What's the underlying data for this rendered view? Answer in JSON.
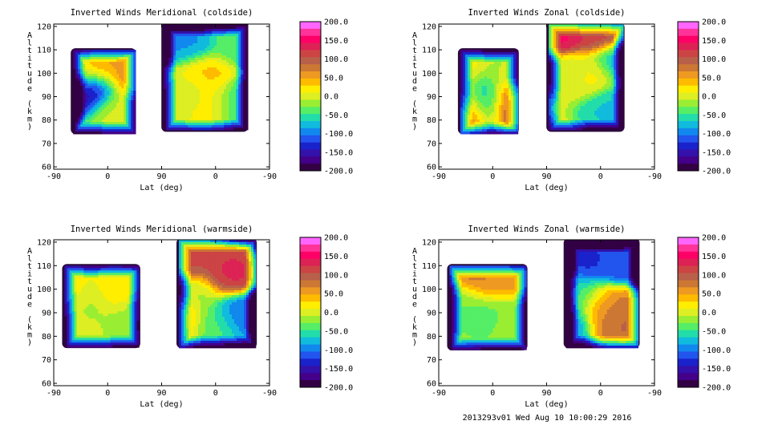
{
  "footer": "2013293v01 Wed Aug 10 10:00:29 2016",
  "colorbar": {
    "labels": [
      "200.0",
      "150.0",
      "100.0",
      "50.0",
      "0.0",
      "-50.0",
      "-100.0",
      "-150.0",
      "-200.0"
    ],
    "colors": [
      "#ff66ff",
      "#ff3399",
      "#ff0066",
      "#dd2255",
      "#cc4444",
      "#b8604a",
      "#cc7733",
      "#ee9922",
      "#ffbb00",
      "#ffee00",
      "#ddee22",
      "#99ee33",
      "#55ee66",
      "#22ddaa",
      "#11bbdd",
      "#1188ee",
      "#2255ee",
      "#1a22cc",
      "#3311aa",
      "#440088",
      "#330044"
    ]
  },
  "chart_data": [
    {
      "type": "heatmap",
      "title": "Inverted Winds Meridional (coldside)",
      "xlabel": "Lat (deg)",
      "ylabel": "Altitude (km)",
      "x_ticks": [
        "-90",
        "0",
        "90",
        "0",
        "-90"
      ],
      "y_ticks": [
        60,
        70,
        80,
        90,
        100,
        110,
        120
      ],
      "ylim": [
        59,
        121
      ],
      "zlim": [
        -200,
        200
      ],
      "blobs": [
        {
          "x": 1.8,
          "y": 93,
          "z": -170
        },
        {
          "x": 0.5,
          "y": 102,
          "z": 5
        },
        {
          "x": 2.2,
          "y": 101,
          "z": 55
        },
        {
          "x": 3.7,
          "y": 97,
          "z": 75
        },
        {
          "x": 3.0,
          "y": 86,
          "z": 0
        },
        {
          "x": 6.0,
          "y": 92,
          "z": -10
        },
        {
          "x": 7.0,
          "y": 100,
          "z": 35
        },
        {
          "x": 7.3,
          "y": 88,
          "z": 20
        },
        {
          "x": 6.2,
          "y": 112,
          "z": -90
        },
        {
          "x": 8.5,
          "y": 112,
          "z": -40
        },
        {
          "x": 8.6,
          "y": 88,
          "z": -60
        }
      ]
    },
    {
      "type": "heatmap",
      "title": "Inverted Winds Zonal (coldside)",
      "xlabel": "Lat (deg)",
      "ylabel": "Altitude (km)",
      "x_ticks": [
        "-90",
        "0",
        "90",
        "0",
        "-90"
      ],
      "y_ticks": [
        60,
        70,
        80,
        90,
        100,
        110,
        120
      ],
      "ylim": [
        59,
        121
      ],
      "zlim": [
        -200,
        200
      ],
      "blobs": [
        {
          "x": 1.0,
          "y": 86,
          "z": 90
        },
        {
          "x": 0.8,
          "y": 98,
          "z": 20
        },
        {
          "x": 2.0,
          "y": 90,
          "z": -80
        },
        {
          "x": 3.4,
          "y": 100,
          "z": -10
        },
        {
          "x": 3.6,
          "y": 89,
          "z": 110
        },
        {
          "x": 5.6,
          "y": 118,
          "z": 150
        },
        {
          "x": 7.4,
          "y": 117,
          "z": 120
        },
        {
          "x": 6.2,
          "y": 99,
          "z": -10
        },
        {
          "x": 7.0,
          "y": 99,
          "z": 25
        },
        {
          "x": 8.0,
          "y": 86,
          "z": -70
        },
        {
          "x": 8.3,
          "y": 105,
          "z": -80
        }
      ]
    },
    {
      "type": "heatmap",
      "title": "Inverted Winds Meridional (warmside)",
      "xlabel": "Lat (deg)",
      "ylabel": "Altitude (km)",
      "x_ticks": [
        "-90",
        "0",
        "90",
        "0",
        "-90"
      ],
      "y_ticks": [
        60,
        70,
        80,
        90,
        100,
        110,
        120
      ],
      "ylim": [
        59,
        121
      ],
      "zlim": [
        -200,
        200
      ],
      "blobs": [
        {
          "x": 0.6,
          "y": 98,
          "z": 40
        },
        {
          "x": 1.6,
          "y": 95,
          "z": -25
        },
        {
          "x": 2.7,
          "y": 98,
          "z": 30
        },
        {
          "x": 1.2,
          "y": 85,
          "z": -5
        },
        {
          "x": 3.4,
          "y": 88,
          "z": -20
        },
        {
          "x": 6.5,
          "y": 112,
          "z": 110
        },
        {
          "x": 8.1,
          "y": 106,
          "z": 130
        },
        {
          "x": 6.6,
          "y": 98,
          "z": -15
        },
        {
          "x": 5.8,
          "y": 88,
          "z": 60
        },
        {
          "x": 7.4,
          "y": 86,
          "z": -40
        },
        {
          "x": 8.6,
          "y": 90,
          "z": -110
        }
      ]
    },
    {
      "type": "heatmap",
      "title": "Inverted Winds Zonal (warmside)",
      "xlabel": "Lat (deg)",
      "ylabel": "Altitude (km)",
      "x_ticks": [
        "-90",
        "0",
        "90",
        "0",
        "-90"
      ],
      "y_ticks": [
        60,
        70,
        80,
        90,
        100,
        110,
        120
      ],
      "ylim": [
        59,
        121
      ],
      "zlim": [
        -200,
        200
      ],
      "blobs": [
        {
          "x": 1.6,
          "y": 106,
          "z": 80
        },
        {
          "x": 2.6,
          "y": 102,
          "z": 60
        },
        {
          "x": 1.0,
          "y": 95,
          "z": -30
        },
        {
          "x": 2.3,
          "y": 90,
          "z": -40
        },
        {
          "x": 3.2,
          "y": 88,
          "z": -20
        },
        {
          "x": 6.8,
          "y": 112,
          "z": -130
        },
        {
          "x": 8.2,
          "y": 112,
          "z": -120
        },
        {
          "x": 6.5,
          "y": 98,
          "z": -60
        },
        {
          "x": 7.6,
          "y": 93,
          "z": 60
        },
        {
          "x": 8.5,
          "y": 88,
          "z": 90
        },
        {
          "x": 5.8,
          "y": 88,
          "z": -100
        }
      ]
    }
  ]
}
